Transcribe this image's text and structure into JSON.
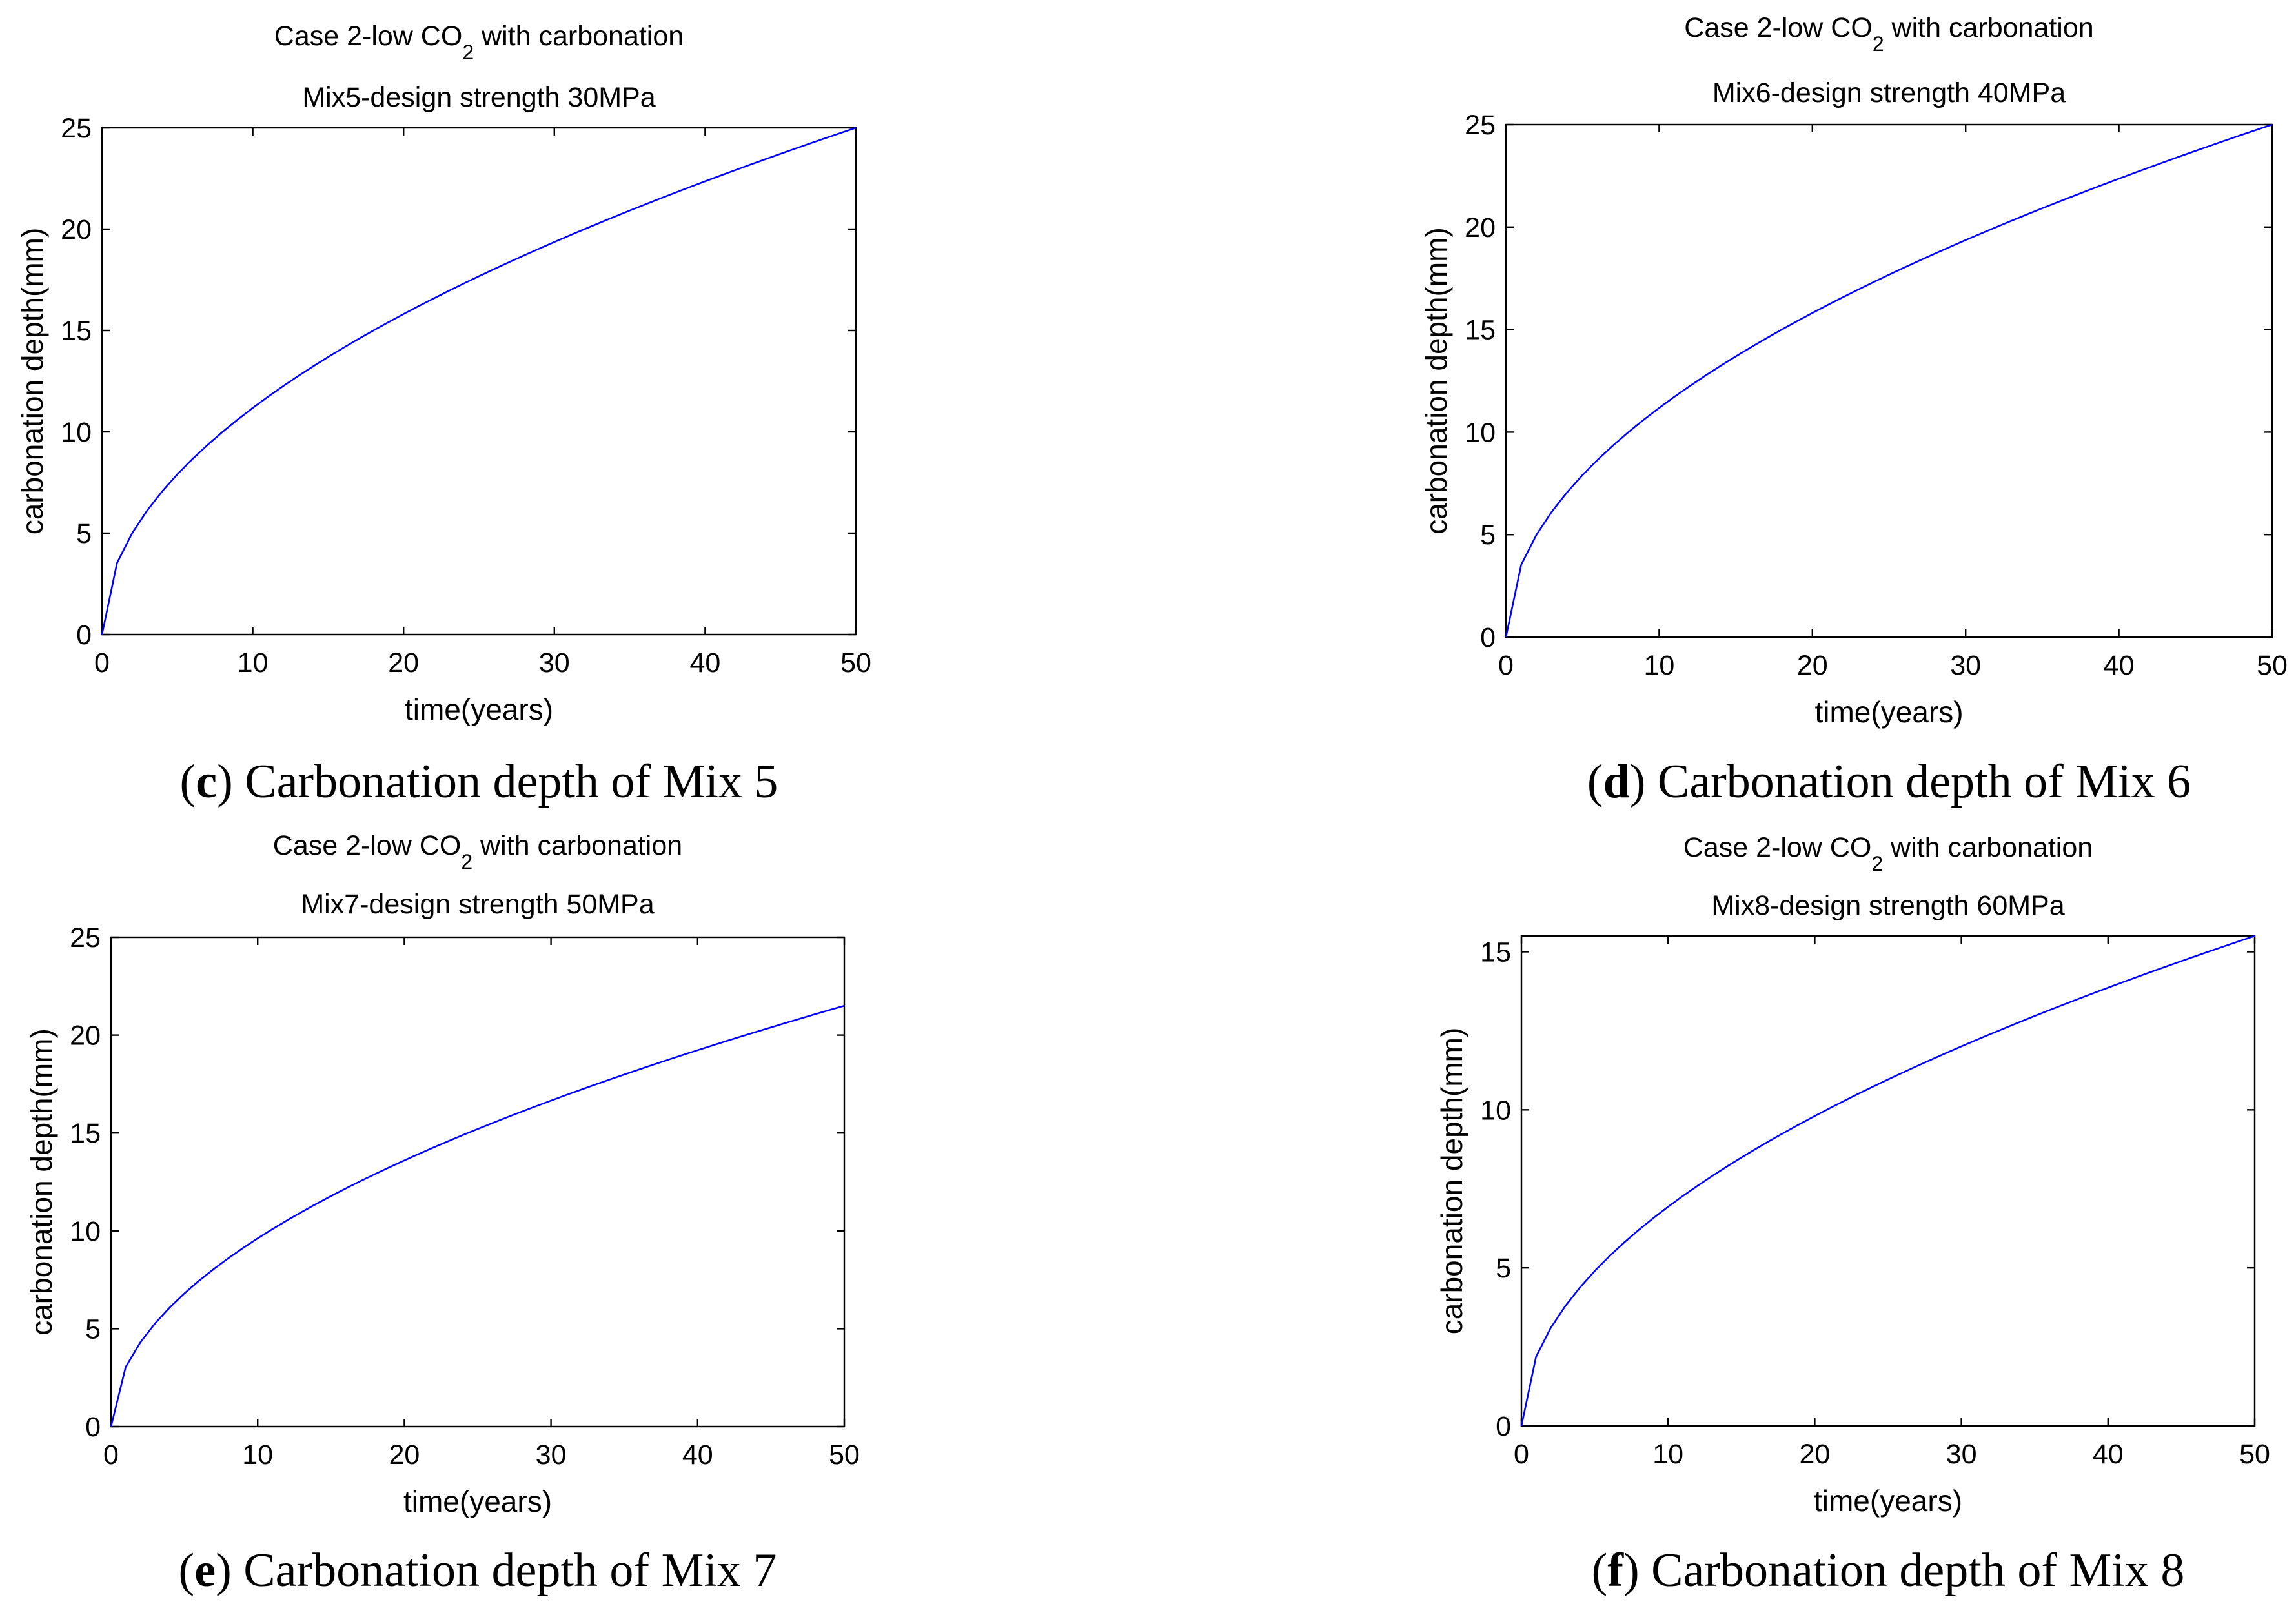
{
  "colors": {
    "line": "#0000ff",
    "axes": "#000000",
    "background": "#ffffff"
  },
  "chart_data": [
    {
      "id": "c",
      "type": "line",
      "title_prefix": "Case 2-low CO",
      "title_sub": "2",
      "title_suffix": " with carbonation",
      "subtitle": "Mix5-design strength 30MPa",
      "xlabel": "time(years)",
      "ylabel": "carbonation depth(mm)",
      "xlim": [
        0,
        50
      ],
      "ylim": [
        0,
        25
      ],
      "xticks": [
        0,
        10,
        20,
        30,
        40,
        50
      ],
      "yticks": [
        0,
        5,
        10,
        15,
        20,
        25
      ],
      "grid": false,
      "series": [
        {
          "name": "Mix 5",
          "model": "k*sqrt(t)",
          "x_end": 50,
          "y_end": 25
        }
      ],
      "caption_letter": "c",
      "caption_text": " Carbonation depth of Mix 5"
    },
    {
      "id": "d",
      "type": "line",
      "title_prefix": "Case 2-low CO",
      "title_sub": "2",
      "title_suffix": " with carbonation",
      "subtitle": "Mix6-design strength 40MPa",
      "xlabel": "time(years)",
      "ylabel": "carbonation depth(mm)",
      "xlim": [
        0,
        50
      ],
      "ylim": [
        0,
        25
      ],
      "xticks": [
        0,
        10,
        20,
        30,
        40,
        50
      ],
      "yticks": [
        0,
        5,
        10,
        15,
        20,
        25
      ],
      "grid": false,
      "series": [
        {
          "name": "Mix 6",
          "model": "k*sqrt(t)",
          "x_end": 50,
          "y_end": 25
        }
      ],
      "caption_letter": "d",
      "caption_text": " Carbonation depth of Mix 6"
    },
    {
      "id": "e",
      "type": "line",
      "title_prefix": "Case 2-low CO",
      "title_sub": "2",
      "title_suffix": " with carbonation",
      "subtitle": "Mix7-design strength 50MPa",
      "xlabel": "time(years)",
      "ylabel": "carbonation depth(mm)",
      "xlim": [
        0,
        50
      ],
      "ylim": [
        0,
        25
      ],
      "xticks": [
        0,
        10,
        20,
        30,
        40,
        50
      ],
      "yticks": [
        0,
        5,
        10,
        15,
        20,
        25
      ],
      "grid": false,
      "series": [
        {
          "name": "Mix 7",
          "model": "k*sqrt(t)",
          "x_end": 50,
          "y_end": 21.5
        }
      ],
      "caption_letter": "e",
      "caption_text": " Carbonation depth of Mix 7"
    },
    {
      "id": "f",
      "type": "line",
      "title_prefix": "Case 2-low CO",
      "title_sub": "2",
      "title_suffix": " with carbonation",
      "subtitle": "Mix8-design strength 60MPa",
      "xlabel": "time(years)",
      "ylabel": "carbonation depth(mm)",
      "xlim": [
        0,
        50
      ],
      "ylim": [
        0,
        15.5
      ],
      "xticks": [
        0,
        10,
        20,
        30,
        40,
        50
      ],
      "yticks": [
        0,
        5,
        10,
        15
      ],
      "grid": false,
      "series": [
        {
          "name": "Mix 8",
          "model": "k*sqrt(t)",
          "x_end": 50,
          "y_end": 15.5
        }
      ],
      "caption_letter": "f",
      "caption_text": " Carbonation depth of Mix 8"
    }
  ]
}
